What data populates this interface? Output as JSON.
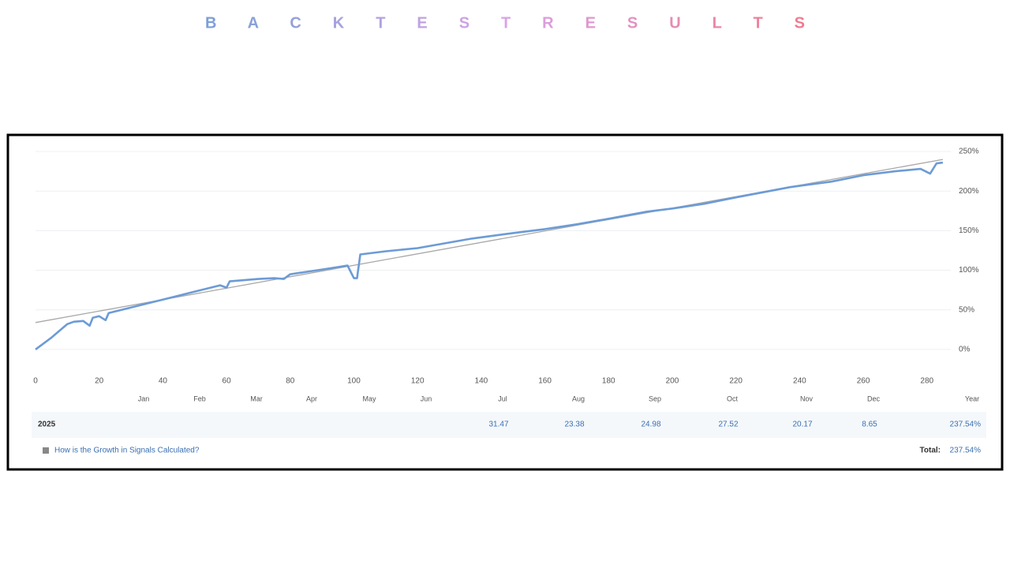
{
  "chart_data": {
    "type": "line",
    "title": "B A C K T E S T R E S U L T S",
    "title_colors": [
      "#7b9fd6",
      "#d9a3e6",
      "#f07a8e"
    ],
    "xlim": [
      0,
      287
    ],
    "ylim": [
      -25,
      255
    ],
    "xticks": [
      0,
      20,
      40,
      60,
      80,
      100,
      120,
      140,
      160,
      180,
      200,
      220,
      240,
      260,
      280
    ],
    "yticks": [
      {
        "value": 0,
        "label": "0%"
      },
      {
        "value": 50,
        "label": "50%"
      },
      {
        "value": 100,
        "label": "100%"
      },
      {
        "value": 150,
        "label": "150%"
      },
      {
        "value": 200,
        "label": "200%"
      },
      {
        "value": 250,
        "label": "250%"
      }
    ],
    "grid": true,
    "series": [
      {
        "color": "#6c9bd6",
        "x": [
          0,
          5,
          10,
          12,
          15,
          17,
          18,
          20,
          22,
          23,
          30,
          40,
          50,
          58,
          60,
          61,
          70,
          75,
          78,
          80,
          90,
          95,
          98,
          100,
          101,
          102,
          110,
          120,
          130,
          137,
          150,
          160,
          170,
          180,
          192,
          200,
          210,
          220,
          237,
          250,
          260,
          270,
          278,
          281,
          283,
          285
        ],
        "values": [
          0,
          15,
          32,
          35,
          36,
          30,
          40,
          42,
          37,
          46,
          53,
          63,
          73,
          81,
          78,
          86,
          89,
          90,
          89,
          95,
          101,
          104,
          106,
          90,
          90,
          120,
          124,
          128,
          135,
          140,
          147,
          152,
          158,
          165,
          174,
          178,
          184,
          192,
          205,
          212,
          220,
          225,
          228,
          222,
          235,
          236
        ]
      },
      {
        "color": "#a8a8a8",
        "x": [
          0,
          285
        ],
        "values": [
          34,
          240
        ]
      }
    ],
    "monthly_returns": {
      "columns": [
        "Jan",
        "Feb",
        "Mar",
        "Apr",
        "May",
        "Jun",
        "Jul",
        "Aug",
        "Sep",
        "Oct",
        "Nov",
        "Dec",
        "Year"
      ],
      "rows": [
        {
          "label": "2025",
          "values": [
            null,
            null,
            null,
            null,
            null,
            null,
            31.47,
            23.38,
            24.98,
            27.52,
            20.17,
            8.65,
            237.54
          ],
          "value_labels": [
            null,
            null,
            null,
            null,
            null,
            null,
            null,
            null,
            null,
            null,
            null,
            null,
            "237.54%"
          ]
        }
      ]
    },
    "footer_link": "How is the Growth in Signals Calculated?",
    "total_label": "Total:",
    "total": {
      "value": 237.54,
      "label": "237.54%"
    }
  }
}
